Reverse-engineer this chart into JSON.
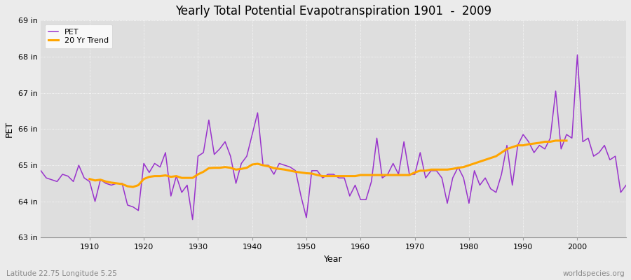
{
  "title": "Yearly Total Potential Evapotranspiration 1901  -  2009",
  "xlabel": "Year",
  "ylabel": "PET",
  "footnote_left": "Latitude 22.75 Longitude 5.25",
  "footnote_right": "worldspecies.org",
  "pet_color": "#9933CC",
  "trend_color": "#FFA500",
  "background_color": "#EBEBEB",
  "plot_bg_color": "#DEDEDE",
  "ylim": [
    63.0,
    69.0
  ],
  "yticks": [
    63,
    64,
    65,
    66,
    67,
    68,
    69
  ],
  "ytick_labels": [
    "63 in",
    "64 in",
    "65 in",
    "66 in",
    "67 in",
    "68 in",
    "69 in"
  ],
  "years": [
    1901,
    1902,
    1903,
    1904,
    1905,
    1906,
    1907,
    1908,
    1909,
    1910,
    1911,
    1912,
    1913,
    1914,
    1915,
    1916,
    1917,
    1918,
    1919,
    1920,
    1921,
    1922,
    1923,
    1924,
    1925,
    1926,
    1927,
    1928,
    1929,
    1930,
    1931,
    1932,
    1933,
    1934,
    1935,
    1936,
    1937,
    1938,
    1939,
    1940,
    1941,
    1942,
    1943,
    1944,
    1945,
    1946,
    1947,
    1948,
    1949,
    1950,
    1951,
    1952,
    1953,
    1954,
    1955,
    1956,
    1957,
    1958,
    1959,
    1960,
    1961,
    1962,
    1963,
    1964,
    1965,
    1966,
    1967,
    1968,
    1969,
    1970,
    1971,
    1972,
    1973,
    1974,
    1975,
    1976,
    1977,
    1978,
    1979,
    1980,
    1981,
    1982,
    1983,
    1984,
    1985,
    1986,
    1987,
    1988,
    1989,
    1990,
    1991,
    1992,
    1993,
    1994,
    1995,
    1996,
    1997,
    1998,
    1999,
    2000,
    2001,
    2002,
    2003,
    2004,
    2005,
    2006,
    2007,
    2008,
    2009
  ],
  "pet_values": [
    64.85,
    64.65,
    64.6,
    64.55,
    64.75,
    64.7,
    64.55,
    65.0,
    64.65,
    64.55,
    64.0,
    64.6,
    64.5,
    64.45,
    64.5,
    64.5,
    63.9,
    63.85,
    63.75,
    65.05,
    64.8,
    65.05,
    64.95,
    65.35,
    64.15,
    64.7,
    64.25,
    64.45,
    63.5,
    65.25,
    65.35,
    66.25,
    65.3,
    65.45,
    65.65,
    65.25,
    64.5,
    65.05,
    65.25,
    65.85,
    66.45,
    65.0,
    65.0,
    64.75,
    65.05,
    65.0,
    64.95,
    64.85,
    64.15,
    63.55,
    64.85,
    64.85,
    64.65,
    64.75,
    64.75,
    64.65,
    64.65,
    64.15,
    64.45,
    64.05,
    64.05,
    64.55,
    65.75,
    64.65,
    64.75,
    65.05,
    64.75,
    65.65,
    64.75,
    64.75,
    65.35,
    64.65,
    64.85,
    64.85,
    64.65,
    63.95,
    64.65,
    64.95,
    64.65,
    63.95,
    64.85,
    64.45,
    64.65,
    64.35,
    64.25,
    64.75,
    65.55,
    64.45,
    65.55,
    65.85,
    65.65,
    65.35,
    65.55,
    65.45,
    65.75,
    67.05,
    65.45,
    65.85,
    65.75,
    68.05,
    65.65,
    65.75,
    65.25,
    65.35,
    65.55,
    65.15,
    65.25,
    64.25,
    64.45
  ],
  "trend_years": [
    1910,
    1911,
    1912,
    1913,
    1914,
    1915,
    1916,
    1917,
    1918,
    1919,
    1920,
    1921,
    1922,
    1923,
    1924,
    1925,
    1926,
    1927,
    1928,
    1929,
    1930,
    1931,
    1932,
    1933,
    1934,
    1935,
    1936,
    1937,
    1938,
    1939,
    1940,
    1941,
    1942,
    1943,
    1944,
    1945,
    1946,
    1947,
    1948,
    1949,
    1950,
    1951,
    1952,
    1953,
    1954,
    1955,
    1956,
    1957,
    1958,
    1959,
    1960,
    1961,
    1962,
    1963,
    1964,
    1965,
    1966,
    1967,
    1968,
    1969,
    1970,
    1971,
    1972,
    1973,
    1974,
    1975,
    1976,
    1977,
    1978,
    1979,
    1980,
    1981,
    1982,
    1983,
    1984,
    1985,
    1986,
    1987,
    1988,
    1989,
    1990,
    1991,
    1992,
    1993,
    1994,
    1995,
    1996,
    1997,
    1998
  ],
  "trend_values": [
    64.62,
    64.58,
    64.6,
    64.55,
    64.52,
    64.5,
    64.48,
    64.42,
    64.4,
    64.45,
    64.62,
    64.68,
    64.7,
    64.7,
    64.72,
    64.68,
    64.7,
    64.65,
    64.65,
    64.65,
    64.75,
    64.82,
    64.92,
    64.93,
    64.93,
    64.95,
    64.93,
    64.88,
    64.9,
    64.93,
    65.02,
    65.04,
    65.0,
    64.97,
    64.92,
    64.9,
    64.88,
    64.85,
    64.82,
    64.8,
    64.78,
    64.77,
    64.73,
    64.7,
    64.7,
    64.7,
    64.7,
    64.7,
    64.7,
    64.7,
    64.73,
    64.73,
    64.73,
    64.73,
    64.73,
    64.73,
    64.73,
    64.73,
    64.73,
    64.73,
    64.8,
    64.85,
    64.85,
    64.88,
    64.88,
    64.88,
    64.88,
    64.9,
    64.93,
    64.95,
    65.0,
    65.05,
    65.1,
    65.15,
    65.2,
    65.25,
    65.35,
    65.45,
    65.5,
    65.55,
    65.55,
    65.58,
    65.6,
    65.62,
    65.65,
    65.65,
    65.68,
    65.68,
    65.68
  ]
}
